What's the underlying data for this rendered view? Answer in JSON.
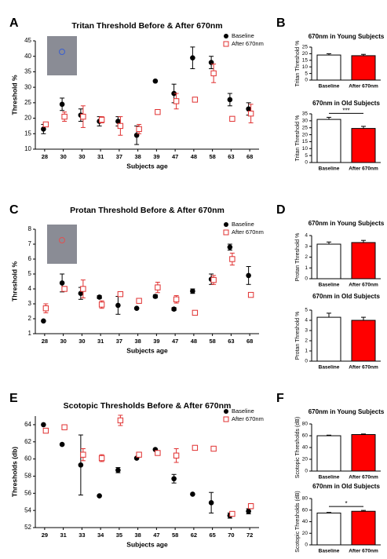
{
  "chart_data": [
    {
      "type": "scatter",
      "panel": "A",
      "title": "Tritan Threshold Before & After 670nm",
      "x_label": "Subjects age",
      "y_label": "Threshold %",
      "categories": [
        "28",
        "30",
        "30",
        "31",
        "37",
        "38",
        "39",
        "47",
        "48",
        "58",
        "63",
        "68"
      ],
      "ylim": [
        10,
        45
      ],
      "yticks": [
        10,
        15,
        20,
        25,
        30,
        35,
        40,
        45
      ],
      "series": [
        {
          "name": "Baseline",
          "color": "#000000",
          "marker": "circle",
          "values": [
            16.5,
            24.5,
            21,
            19,
            19,
            14.5,
            32,
            28,
            39.5,
            38,
            26,
            23
          ],
          "errors": [
            1.5,
            2,
            2,
            1.5,
            1.5,
            3,
            null,
            3,
            3.5,
            2,
            2,
            2
          ]
        },
        {
          "name": "After 670nm",
          "color": "#e03030",
          "marker": "square",
          "values": [
            18,
            20.5,
            20.5,
            19.5,
            17.5,
            16.5,
            22,
            25.5,
            26,
            34.5,
            19.8,
            21.5
          ],
          "errors": [
            0.5,
            1.5,
            3.5,
            1,
            3,
            1.5,
            null,
            2.5,
            null,
            3,
            null,
            3
          ]
        }
      ]
    },
    {
      "type": "bar",
      "panel": "B",
      "title": "670nm in Young Subjects",
      "y_label": "Tritan Threshold %",
      "categories": [
        "Baseline",
        "After 670nm"
      ],
      "values": [
        19,
        18.5
      ],
      "errors": [
        1,
        1
      ],
      "colors": [
        "#ffffff",
        "#ff0000"
      ],
      "ylim": [
        0,
        25
      ],
      "yticks": [
        0,
        5,
        10,
        15,
        20,
        25
      ]
    },
    {
      "type": "bar",
      "title": "670nm in Old Subjects",
      "y_label": "Tritan Threshold %",
      "categories": [
        "Baseline",
        "After 670nm"
      ],
      "values": [
        31,
        24.5
      ],
      "errors": [
        1.5,
        1.5
      ],
      "colors": [
        "#ffffff",
        "#ff0000"
      ],
      "ylim": [
        0,
        35
      ],
      "yticks": [
        0,
        5,
        10,
        15,
        20,
        25,
        30,
        35
      ],
      "annotation": "***"
    },
    {
      "type": "scatter",
      "panel": "C",
      "title": "Protan Threshold Before & After 670nm",
      "x_label": "Subjects age",
      "y_label": "Threshold %",
      "categories": [
        "28",
        "30",
        "30",
        "31",
        "37",
        "38",
        "39",
        "47",
        "48",
        "58",
        "63",
        "68"
      ],
      "ylim": [
        1,
        8
      ],
      "yticks": [
        1,
        2,
        3,
        4,
        5,
        6,
        7,
        8
      ],
      "series": [
        {
          "name": "Baseline",
          "color": "#000000",
          "marker": "circle",
          "values": [
            1.85,
            4.4,
            3.7,
            3.45,
            2.9,
            2.7,
            3.5,
            2.65,
            3.85,
            4.65,
            6.8,
            4.9
          ],
          "errors": [
            null,
            0.6,
            0.4,
            0.1,
            0.6,
            null,
            0.1,
            0.1,
            0.15,
            0.35,
            0.2,
            0.6
          ]
        },
        {
          "name": "After 670nm",
          "color": "#e03030",
          "marker": "square",
          "values": [
            2.7,
            4.0,
            4.0,
            2.95,
            3.65,
            3.2,
            4.1,
            3.3,
            2.4,
            4.6,
            6.0,
            3.6
          ],
          "errors": [
            0.3,
            0.1,
            0.6,
            0.25,
            0.1,
            null,
            0.35,
            0.25,
            null,
            0.3,
            0.4,
            null
          ]
        }
      ]
    },
    {
      "type": "bar",
      "panel": "D",
      "title": "670nm in Young Subjects",
      "y_label": "Protan Threshold %",
      "categories": [
        "Baseline",
        "After 670nm"
      ],
      "values": [
        3.2,
        3.35
      ],
      "errors": [
        0.2,
        0.2
      ],
      "colors": [
        "#ffffff",
        "#ff0000"
      ],
      "ylim": [
        0,
        4
      ],
      "yticks": [
        0,
        1,
        2,
        3,
        4
      ]
    },
    {
      "type": "bar",
      "title": "670nm in Old Subjects",
      "y_label": "Protan Threshold %",
      "categories": [
        "Baseline",
        "After 670nm"
      ],
      "values": [
        4.3,
        4.0
      ],
      "errors": [
        0.4,
        0.3
      ],
      "colors": [
        "#ffffff",
        "#ff0000"
      ],
      "ylim": [
        0,
        5
      ],
      "yticks": [
        0,
        1,
        2,
        3,
        4,
        5
      ]
    },
    {
      "type": "scatter",
      "panel": "E",
      "title": "Scotopic Thresholds Before & After 670nm",
      "x_label": "Subjects age",
      "y_label": "Thresholds (db)",
      "categories": [
        "29",
        "31",
        "33",
        "34",
        "35",
        "38",
        "47",
        "58",
        "62",
        "65",
        "70",
        "72"
      ],
      "ylim": [
        52,
        65
      ],
      "yticks": [
        52,
        54,
        56,
        58,
        60,
        62,
        64
      ],
      "series": [
        {
          "name": "Baseline",
          "color": "#000000",
          "marker": "circle",
          "values": [
            64,
            61.7,
            59.3,
            55.7,
            58.7,
            60.1,
            61.1,
            57.7,
            55.9,
            54.9,
            53.4,
            53.9
          ],
          "errors": [
            null,
            null,
            3.5,
            null,
            0.3,
            null,
            null,
            0.5,
            null,
            1.2,
            0.3,
            0.3
          ]
        },
        {
          "name": "After 670nm",
          "color": "#e03030",
          "marker": "square",
          "values": [
            63.3,
            63.7,
            60.5,
            60.1,
            64.5,
            60.5,
            60.7,
            60.4,
            61.3,
            61.2,
            53.6,
            54.5
          ],
          "errors": [
            0.2,
            null,
            0.7,
            0.4,
            0.6,
            null,
            null,
            0.8,
            0.2,
            null,
            null,
            0.3
          ]
        }
      ]
    },
    {
      "type": "bar",
      "panel": "F",
      "title": "670nm in Young Subjects",
      "y_label": "Scotopic Thresholds (dB)",
      "categories": [
        "Baseline",
        "After 670nm"
      ],
      "values": [
        60,
        62
      ],
      "errors": [
        1,
        1
      ],
      "colors": [
        "#ffffff",
        "#ff0000"
      ],
      "ylim": [
        0,
        80
      ],
      "yticks": [
        0,
        20,
        40,
        60,
        80
      ]
    },
    {
      "type": "bar",
      "title": "670nm in Old Subjects",
      "y_label": "Scotopic Thresholds (dB)",
      "categories": [
        "Baseline",
        "After 670nm"
      ],
      "values": [
        55,
        58
      ],
      "errors": [
        1,
        1.5
      ],
      "colors": [
        "#ffffff",
        "#ff0000"
      ],
      "ylim": [
        0,
        80
      ],
      "yticks": [
        0,
        20,
        40,
        60,
        80
      ],
      "annotation": "*"
    }
  ]
}
